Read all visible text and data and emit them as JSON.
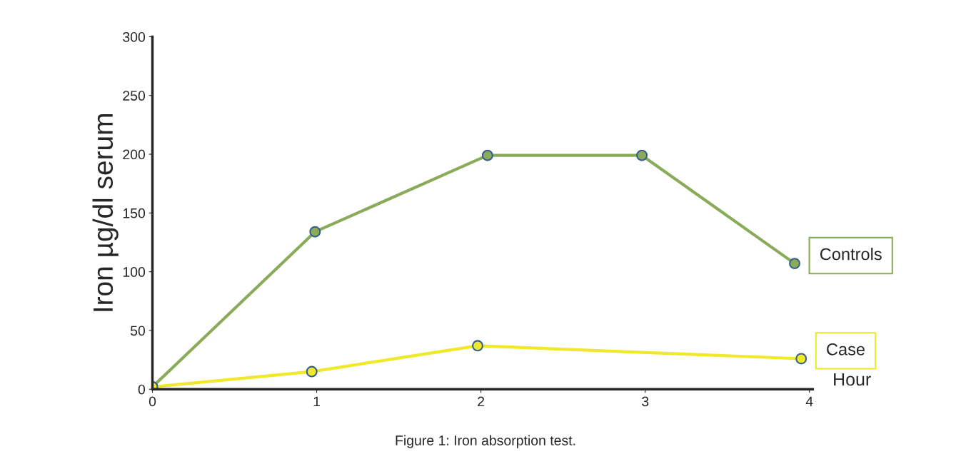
{
  "chart_data": {
    "type": "line",
    "xlabel": "Hour",
    "ylabel": "Iron µg/dl serum",
    "annotations": [
      "Figure 1: Iron absorption test."
    ],
    "series": [
      {
        "name": "Controls",
        "color": "#8aab5a",
        "x": [
          0,
          0.99,
          2.04,
          2.98,
          3.91
        ],
        "values": [
          2,
          134,
          199,
          199,
          107
        ]
      },
      {
        "name": "Case",
        "color": "#f0e82a",
        "x": [
          0,
          0.97,
          1.98,
          3.95
        ],
        "values": [
          2,
          15,
          37,
          26
        ]
      }
    ],
    "xlim": [
      0,
      4.02
    ],
    "xticks": [
      0,
      1,
      2,
      3,
      4
    ],
    "ylim": [
      0,
      300
    ],
    "yticks": [
      0,
      50,
      100,
      150,
      200,
      250,
      300
    ],
    "grid": false,
    "legend": false,
    "marker": "circle",
    "line_style": "solid"
  }
}
